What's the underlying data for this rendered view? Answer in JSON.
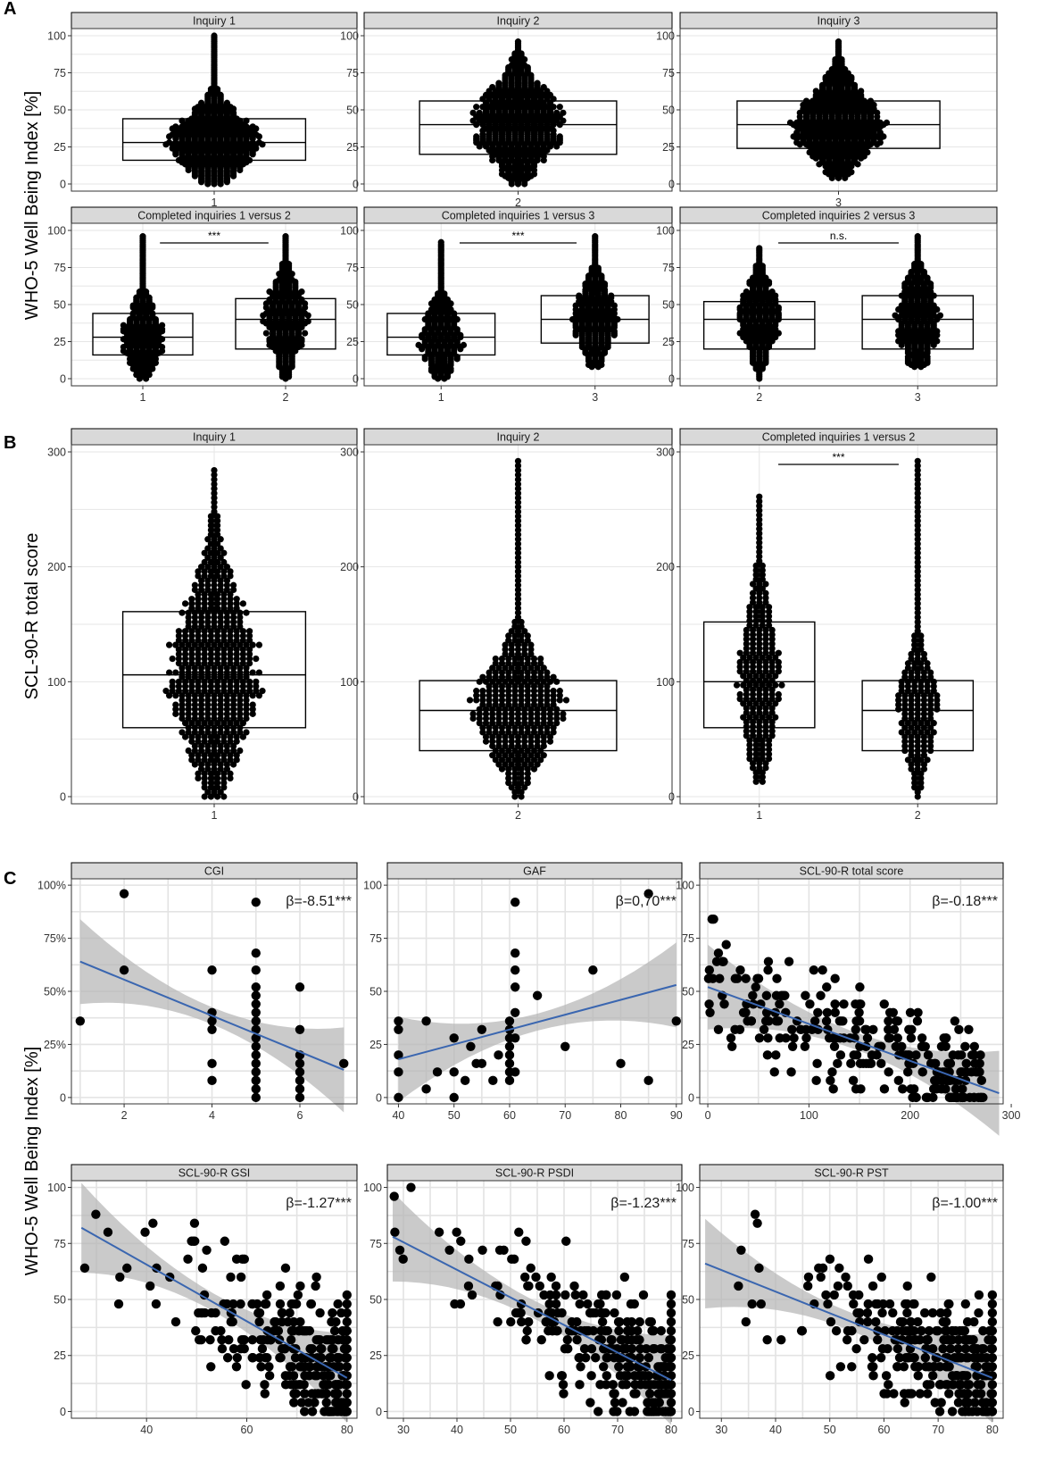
{
  "panels": {
    "A": {
      "letter": "A",
      "ylabel": "WHO-5 Well Being Index [%]"
    },
    "B": {
      "letter": "B",
      "ylabel": "SCL-90-R total score"
    },
    "C": {
      "letter": "C",
      "ylabel": "WHO-5 Well Being Index [%]"
    }
  },
  "chart_data": [
    {
      "id": "A1",
      "type": "box-dotplot",
      "title": "Inquiry 1",
      "categories": [
        "1"
      ],
      "ylabel": "WHO-5 Well Being Index [%]",
      "ylim": [
        0,
        100
      ],
      "yticks": [
        0,
        25,
        50,
        75,
        100
      ],
      "boxes": [
        {
          "category": "1",
          "q1": 16,
          "median": 28,
          "q3": 44,
          "min": 0,
          "max": 100
        }
      ]
    },
    {
      "id": "A2",
      "type": "box-dotplot",
      "title": "Inquiry 2",
      "categories": [
        "2"
      ],
      "ylim": [
        0,
        100
      ],
      "yticks": [
        0,
        25,
        50,
        75,
        100
      ],
      "boxes": [
        {
          "category": "2",
          "q1": 20,
          "median": 40,
          "q3": 56,
          "min": 0,
          "max": 96
        }
      ]
    },
    {
      "id": "A3",
      "type": "box-dotplot",
      "title": "Inquiry 3",
      "categories": [
        "3"
      ],
      "ylim": [
        0,
        100
      ],
      "yticks": [
        0,
        25,
        50,
        75,
        100
      ],
      "boxes": [
        {
          "category": "3",
          "q1": 24,
          "median": 40,
          "q3": 56,
          "min": 4,
          "max": 96
        }
      ]
    },
    {
      "id": "A4",
      "type": "box-dotplot",
      "title": "Completed inquiries 1 versus 2",
      "categories": [
        "1",
        "2"
      ],
      "ylim": [
        0,
        100
      ],
      "yticks": [
        0,
        25,
        50,
        75,
        100
      ],
      "significance": "***",
      "boxes": [
        {
          "category": "1",
          "q1": 16,
          "median": 28,
          "q3": 44,
          "min": 0,
          "max": 96
        },
        {
          "category": "2",
          "q1": 20,
          "median": 40,
          "q3": 54,
          "min": 0,
          "max": 96
        }
      ]
    },
    {
      "id": "A5",
      "type": "box-dotplot",
      "title": "Completed inquiries 1 versus 3",
      "categories": [
        "1",
        "3"
      ],
      "ylim": [
        0,
        100
      ],
      "yticks": [
        0,
        25,
        50,
        75,
        100
      ],
      "significance": "***",
      "boxes": [
        {
          "category": "1",
          "q1": 16,
          "median": 28,
          "q3": 44,
          "min": 0,
          "max": 92
        },
        {
          "category": "3",
          "q1": 24,
          "median": 40,
          "q3": 56,
          "min": 8,
          "max": 96
        }
      ]
    },
    {
      "id": "A6",
      "type": "box-dotplot",
      "title": "Completed inquiries 2 versus 3",
      "categories": [
        "2",
        "3"
      ],
      "ylim": [
        0,
        100
      ],
      "yticks": [
        0,
        25,
        50,
        75,
        100
      ],
      "significance": "n.s.",
      "boxes": [
        {
          "category": "2",
          "q1": 20,
          "median": 40,
          "q3": 52,
          "min": 0,
          "max": 88
        },
        {
          "category": "3",
          "q1": 20,
          "median": 40,
          "q3": 56,
          "min": 8,
          "max": 96
        }
      ]
    },
    {
      "id": "B1",
      "type": "box-dotplot",
      "title": "Inquiry 1",
      "categories": [
        "1"
      ],
      "ylabel": "SCL-90-R total score",
      "ylim": [
        0,
        300
      ],
      "yticks": [
        0,
        100,
        200,
        300
      ],
      "boxes": [
        {
          "category": "1",
          "q1": 60,
          "median": 106,
          "q3": 161,
          "min": 0,
          "max": 286
        }
      ]
    },
    {
      "id": "B2",
      "type": "box-dotplot",
      "title": "Inquiry 2",
      "categories": [
        "2"
      ],
      "ylim": [
        0,
        300
      ],
      "yticks": [
        0,
        100,
        200,
        300
      ],
      "boxes": [
        {
          "category": "2",
          "q1": 40,
          "median": 75,
          "q3": 101,
          "min": 0,
          "max": 294
        }
      ]
    },
    {
      "id": "B3",
      "type": "box-dotplot",
      "title": "Completed inquiries 1 versus 2",
      "categories": [
        "1",
        "2"
      ],
      "ylim": [
        0,
        300
      ],
      "yticks": [
        0,
        100,
        200,
        300
      ],
      "significance": "***",
      "boxes": [
        {
          "category": "1",
          "q1": 60,
          "median": 100,
          "q3": 152,
          "min": 13,
          "max": 263
        },
        {
          "category": "2",
          "q1": 40,
          "median": 75,
          "q3": 101,
          "min": 0,
          "max": 294
        }
      ]
    },
    {
      "id": "C1",
      "type": "scatter",
      "title": "CGI",
      "xlim": [
        0.8,
        7.3
      ],
      "xticks": [
        2,
        4,
        6
      ],
      "ylim": [
        -3,
        103
      ],
      "yticks": [
        "0",
        "25%",
        "50%",
        "75%",
        "100%"
      ],
      "ylabel": "WHO-5 Well Being Index [%]",
      "beta": "β=-8.51***",
      "regression": {
        "x": [
          1,
          7
        ],
        "y": [
          64,
          13
        ]
      },
      "points": [
        [
          1,
          36
        ],
        [
          2,
          96
        ],
        [
          2,
          60
        ],
        [
          4,
          60
        ],
        [
          4,
          40
        ],
        [
          4,
          36
        ],
        [
          4,
          32
        ],
        [
          4,
          16
        ],
        [
          4,
          8
        ],
        [
          5,
          92
        ],
        [
          5,
          68
        ],
        [
          5,
          60
        ],
        [
          5,
          52
        ],
        [
          5,
          48
        ],
        [
          5,
          44
        ],
        [
          5,
          40
        ],
        [
          5,
          36
        ],
        [
          5,
          32
        ],
        [
          5,
          28
        ],
        [
          5,
          24
        ],
        [
          5,
          20
        ],
        [
          5,
          16
        ],
        [
          5,
          12
        ],
        [
          5,
          8
        ],
        [
          5,
          4
        ],
        [
          5,
          0
        ],
        [
          6,
          52
        ],
        [
          6,
          32
        ],
        [
          6,
          20
        ],
        [
          6,
          16
        ],
        [
          6,
          12
        ],
        [
          6,
          8
        ],
        [
          6,
          4
        ],
        [
          6,
          0
        ],
        [
          7,
          16
        ]
      ]
    },
    {
      "id": "C2",
      "type": "scatter",
      "title": "GAF",
      "xlim": [
        38,
        91
      ],
      "xticks": [
        40,
        50,
        60,
        70,
        80,
        90
      ],
      "ylim": [
        -3,
        103
      ],
      "yticks": [
        "0",
        "25",
        "50",
        "75",
        "100"
      ],
      "beta": "β=0,70***",
      "regression": {
        "x": [
          40,
          90
        ],
        "y": [
          18,
          53
        ]
      },
      "points": [
        [
          40,
          36
        ],
        [
          40,
          32
        ],
        [
          40,
          20
        ],
        [
          40,
          12
        ],
        [
          40,
          0
        ],
        [
          45,
          36
        ],
        [
          45,
          4
        ],
        [
          47,
          12
        ],
        [
          50,
          28
        ],
        [
          50,
          12
        ],
        [
          50,
          0
        ],
        [
          52,
          8
        ],
        [
          53,
          24
        ],
        [
          54,
          16
        ],
        [
          55,
          32
        ],
        [
          55,
          16
        ],
        [
          57,
          8
        ],
        [
          58,
          20
        ],
        [
          60,
          36
        ],
        [
          60,
          32
        ],
        [
          60,
          28
        ],
        [
          60,
          24
        ],
        [
          60,
          20
        ],
        [
          60,
          16
        ],
        [
          60,
          12
        ],
        [
          60,
          8
        ],
        [
          61,
          92
        ],
        [
          61,
          68
        ],
        [
          61,
          60
        ],
        [
          61,
          52
        ],
        [
          61,
          40
        ],
        [
          61,
          28
        ],
        [
          61,
          12
        ],
        [
          65,
          48
        ],
        [
          70,
          24
        ],
        [
          75,
          60
        ],
        [
          80,
          16
        ],
        [
          85,
          96
        ],
        [
          85,
          8
        ],
        [
          90,
          36
        ]
      ]
    },
    {
      "id": "C3",
      "type": "scatter",
      "title": "SCL-90-R total score",
      "xlim": [
        -8,
        292
      ],
      "xticks": [
        0,
        100,
        200,
        300
      ],
      "ylim": [
        -3,
        103
      ],
      "yticks": [
        "0",
        "25",
        "50",
        "75",
        "100"
      ],
      "beta": "β=-0.18***",
      "regression": {
        "x": [
          0,
          288
        ],
        "y": [
          52,
          2
        ]
      },
      "points": "generated-cloud"
    },
    {
      "id": "C4",
      "type": "scatter",
      "title": "SCL-90-R GSI",
      "xlim": [
        25,
        82
      ],
      "xticks": [
        40,
        60,
        80
      ],
      "ylim": [
        -3,
        103
      ],
      "yticks": [
        "0",
        "25",
        "50",
        "75",
        "100"
      ],
      "beta": "β=-1.27***",
      "regression": {
        "x": [
          27,
          80
        ],
        "y": [
          82,
          15
        ]
      },
      "points": "generated-cloud"
    },
    {
      "id": "C5",
      "type": "scatter",
      "title": "SCL-90-R PSDI",
      "xlim": [
        27,
        82
      ],
      "xticks": [
        30,
        40,
        50,
        60,
        70,
        80
      ],
      "ylim": [
        -3,
        103
      ],
      "yticks": [
        "0",
        "25",
        "50",
        "75",
        "100"
      ],
      "beta": "β=-1.23***",
      "regression": {
        "x": [
          28,
          80
        ],
        "y": [
          78,
          14
        ]
      },
      "points": "generated-cloud"
    },
    {
      "id": "C6",
      "type": "scatter",
      "title": "SCL-90-R PST",
      "xlim": [
        26,
        82
      ],
      "xticks": [
        30,
        40,
        50,
        60,
        70,
        80
      ],
      "ylim": [
        -3,
        103
      ],
      "yticks": [
        "0",
        "25",
        "50",
        "75",
        "100"
      ],
      "beta": "β=-1.00***",
      "regression": {
        "x": [
          27,
          80
        ],
        "y": [
          66,
          15
        ]
      },
      "points": "generated-cloud"
    }
  ]
}
